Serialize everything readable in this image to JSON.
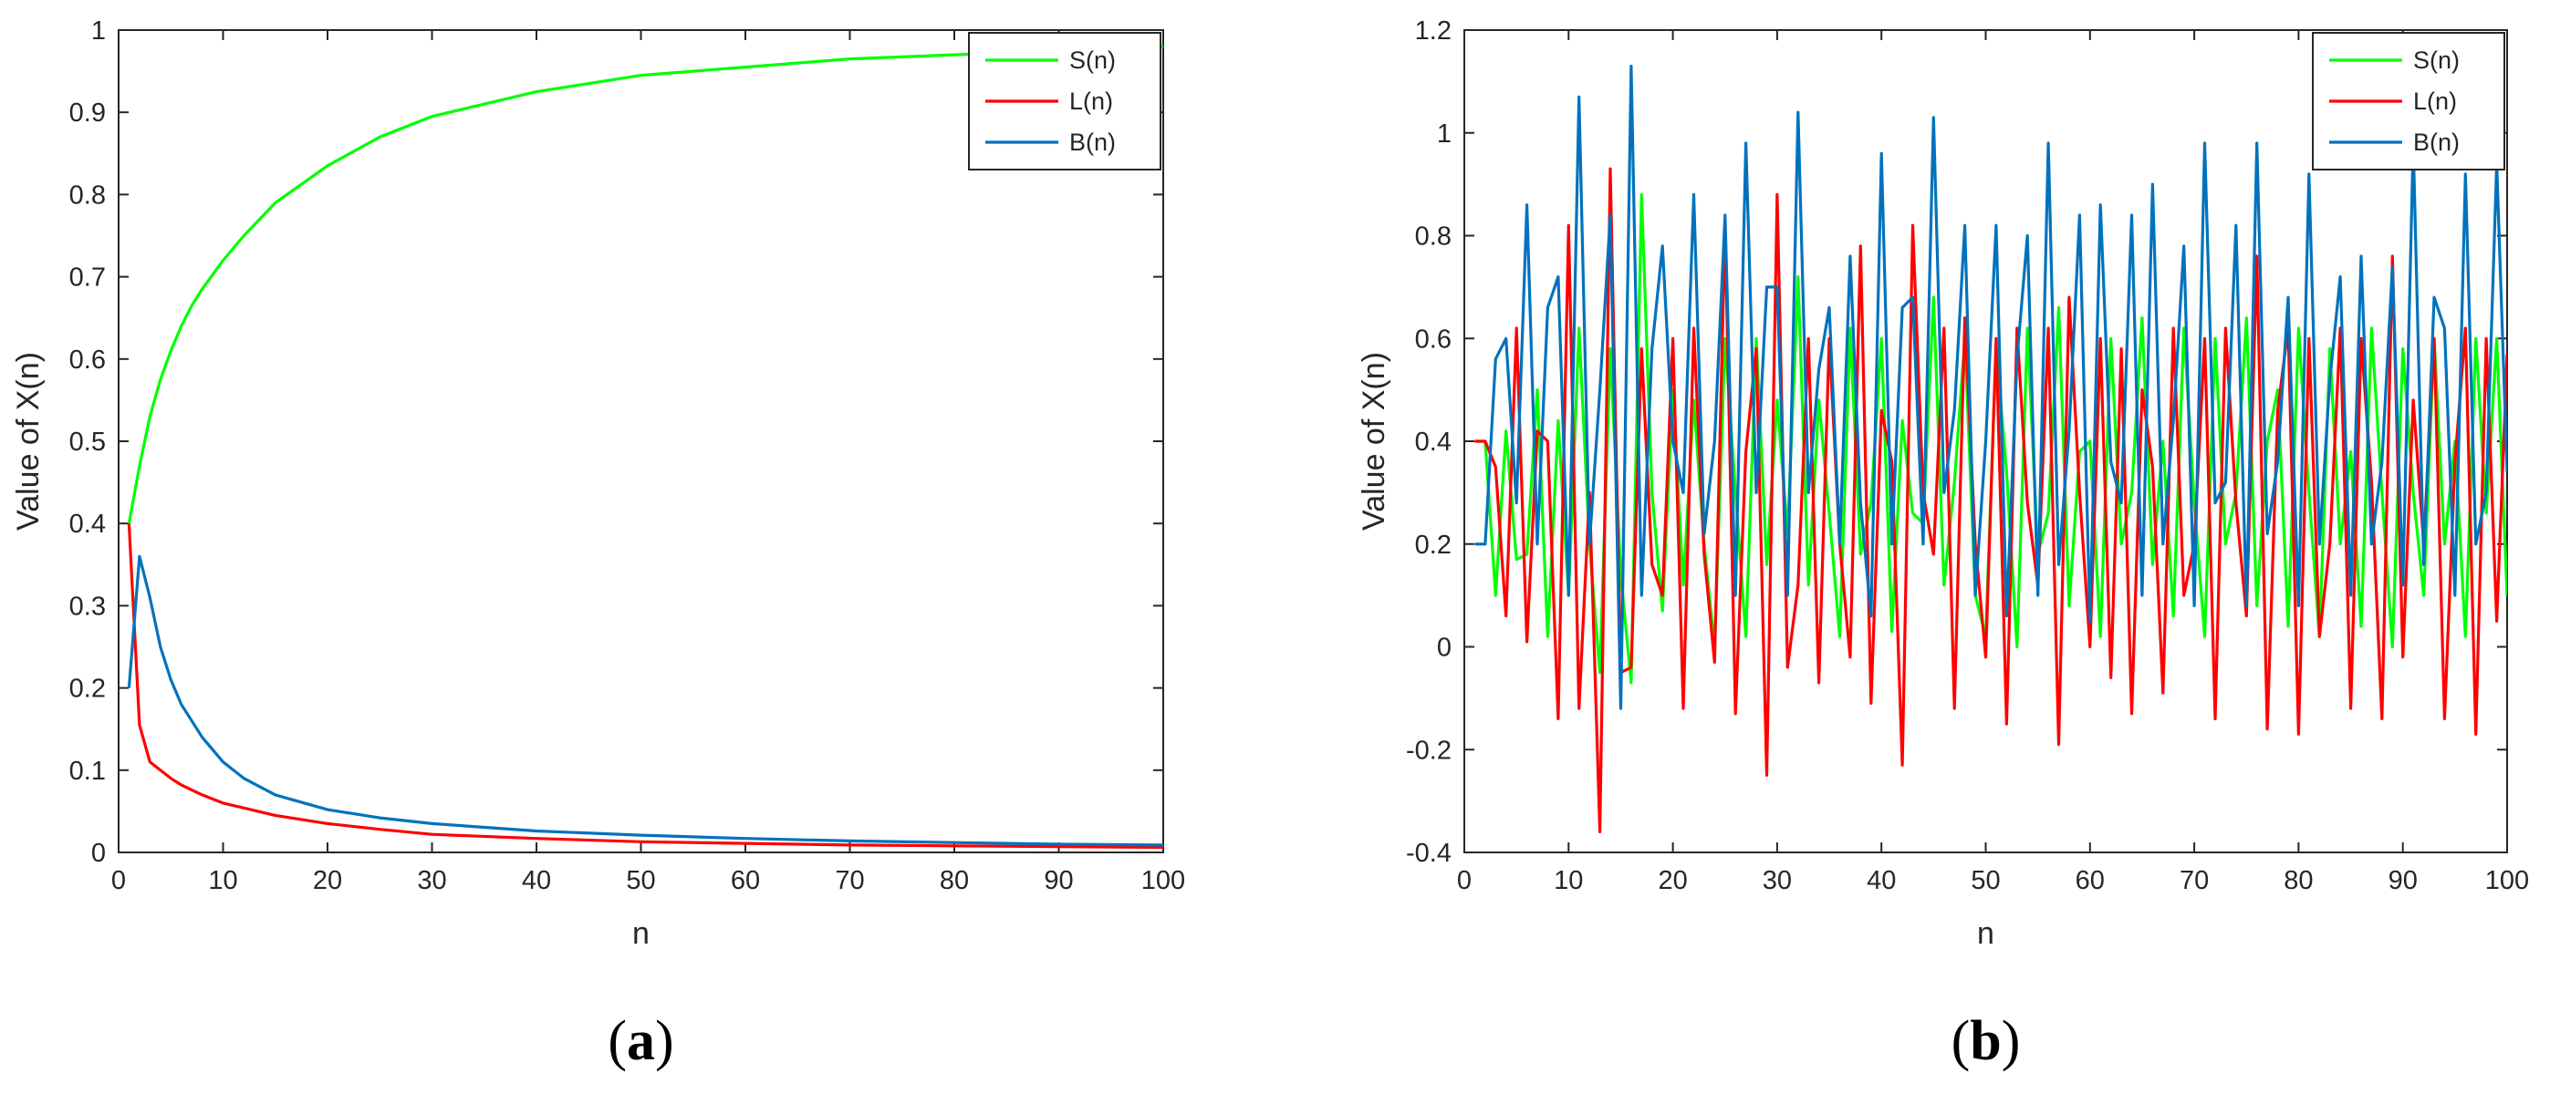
{
  "chart_data": [
    {
      "type": "line",
      "panel_label": "a",
      "xlabel": "n",
      "ylabel": "Value of X(n)",
      "xlim": [
        0,
        100
      ],
      "ylim": [
        0,
        1
      ],
      "xticks": [
        0,
        10,
        20,
        30,
        40,
        50,
        60,
        70,
        80,
        90,
        100
      ],
      "yticks": [
        0,
        0.1,
        0.2,
        0.3,
        0.4,
        0.5,
        0.6,
        0.7,
        0.8,
        0.9,
        1
      ],
      "ytick_labels": [
        "0",
        "0.1",
        "0.2",
        "0.3",
        "0.4",
        "0.5",
        "0.6",
        "0.7",
        "0.8",
        "0.9",
        "1"
      ],
      "grid": false,
      "legend_position": "top-right",
      "series": [
        {
          "name": "S(n)",
          "color": "#00ff00",
          "x": [
            1,
            2,
            3,
            4,
            5,
            6,
            7,
            8,
            10,
            12,
            15,
            20,
            25,
            30,
            40,
            50,
            60,
            70,
            80,
            90,
            100
          ],
          "y": [
            0.4,
            0.47,
            0.53,
            0.575,
            0.61,
            0.64,
            0.665,
            0.685,
            0.72,
            0.75,
            0.79,
            0.835,
            0.87,
            0.895,
            0.925,
            0.945,
            0.955,
            0.965,
            0.97,
            0.975,
            0.98
          ]
        },
        {
          "name": "L(n)",
          "color": "#ff0000",
          "x": [
            1,
            2,
            3,
            4,
            5,
            6,
            8,
            10,
            15,
            20,
            25,
            30,
            40,
            50,
            60,
            70,
            80,
            90,
            100
          ],
          "y": [
            0.4,
            0.155,
            0.11,
            0.1,
            0.09,
            0.082,
            0.07,
            0.06,
            0.045,
            0.035,
            0.028,
            0.022,
            0.017,
            0.013,
            0.011,
            0.009,
            0.008,
            0.007,
            0.006
          ]
        },
        {
          "name": "B(n)",
          "color": "#0072bd",
          "x": [
            1,
            2,
            3,
            4,
            5,
            6,
            7,
            8,
            10,
            12,
            15,
            20,
            25,
            30,
            40,
            50,
            60,
            70,
            80,
            90,
            100
          ],
          "y": [
            0.2,
            0.36,
            0.31,
            0.25,
            0.21,
            0.18,
            0.16,
            0.14,
            0.11,
            0.09,
            0.07,
            0.052,
            0.042,
            0.035,
            0.026,
            0.021,
            0.017,
            0.014,
            0.012,
            0.01,
            0.009
          ]
        }
      ]
    },
    {
      "type": "line",
      "panel_label": "b",
      "xlabel": "n",
      "ylabel": "Value of X(n)",
      "xlim": [
        0,
        100
      ],
      "ylim": [
        -0.4,
        1.2
      ],
      "xticks": [
        0,
        10,
        20,
        30,
        40,
        50,
        60,
        70,
        80,
        90,
        100
      ],
      "yticks": [
        -0.4,
        -0.2,
        0,
        0.2,
        0.4,
        0.6,
        0.8,
        1,
        1.2
      ],
      "ytick_labels": [
        "-0.4",
        "-0.2",
        "0",
        "0.2",
        "0.4",
        "0.6",
        "0.8",
        "1",
        "1.2"
      ],
      "grid": false,
      "legend_position": "top-right",
      "series": [
        {
          "name": "S(n)",
          "color": "#00ff00",
          "x": [
            1,
            2,
            3,
            4,
            5,
            6,
            7,
            8,
            9,
            10,
            11,
            12,
            13,
            14,
            15,
            16,
            17,
            18,
            19,
            20,
            21,
            22,
            23,
            24,
            25,
            26,
            27,
            28,
            29,
            30,
            31,
            32,
            33,
            34,
            35,
            36,
            37,
            38,
            39,
            40,
            41,
            42,
            43,
            44,
            45,
            46,
            47,
            48,
            49,
            50,
            51,
            52,
            53,
            54,
            55,
            56,
            57,
            58,
            59,
            60,
            61,
            62,
            63,
            64,
            65,
            66,
            67,
            68,
            69,
            70,
            71,
            72,
            73,
            74,
            75,
            76,
            77,
            78,
            79,
            80,
            81,
            82,
            83,
            84,
            85,
            86,
            87,
            88,
            89,
            90,
            91,
            92,
            93,
            94,
            95,
            96,
            97,
            98,
            99,
            100
          ],
          "y": [
            0.4,
            0.4,
            0.1,
            0.42,
            0.17,
            0.18,
            0.5,
            0.02,
            0.44,
            0.1,
            0.62,
            0.2,
            -0.05,
            0.58,
            0.14,
            -0.07,
            0.88,
            0.3,
            0.07,
            0.5,
            0.12,
            0.48,
            0.2,
            0.0,
            0.6,
            0.3,
            0.02,
            0.6,
            0.16,
            0.48,
            0.22,
            0.72,
            0.12,
            0.48,
            0.26,
            0.02,
            0.62,
            0.18,
            0.28,
            0.6,
            0.03,
            0.44,
            0.26,
            0.24,
            0.68,
            0.12,
            0.32,
            0.6,
            0.1,
            0.02,
            0.58,
            0.34,
            0.0,
            0.62,
            0.18,
            0.26,
            0.66,
            0.08,
            0.38,
            0.4,
            0.02,
            0.6,
            0.2,
            0.3,
            0.64,
            0.16,
            0.4,
            0.06,
            0.62,
            0.28,
            0.02,
            0.6,
            0.2,
            0.3,
            0.64,
            0.08,
            0.4,
            0.5,
            0.04,
            0.62,
            0.3,
            0.02,
            0.58,
            0.2,
            0.38,
            0.04,
            0.62,
            0.3,
            0.0,
            0.58,
            0.3,
            0.1,
            0.6,
            0.2,
            0.4,
            0.02,
            0.6,
            0.26,
            0.6,
            0.1
          ]
        },
        {
          "name": "L(n)",
          "color": "#ff0000",
          "x": [
            1,
            2,
            3,
            4,
            5,
            6,
            7,
            8,
            9,
            10,
            11,
            12,
            13,
            14,
            15,
            16,
            17,
            18,
            19,
            20,
            21,
            22,
            23,
            24,
            25,
            26,
            27,
            28,
            29,
            30,
            31,
            32,
            33,
            34,
            35,
            36,
            37,
            38,
            39,
            40,
            41,
            42,
            43,
            44,
            45,
            46,
            47,
            48,
            49,
            50,
            51,
            52,
            53,
            54,
            55,
            56,
            57,
            58,
            59,
            60,
            61,
            62,
            63,
            64,
            65,
            66,
            67,
            68,
            69,
            70,
            71,
            72,
            73,
            74,
            75,
            76,
            77,
            78,
            79,
            80,
            81,
            82,
            83,
            84,
            85,
            86,
            87,
            88,
            89,
            90,
            91,
            92,
            93,
            94,
            95,
            96,
            97,
            98,
            99,
            100
          ],
          "y": [
            0.4,
            0.4,
            0.35,
            0.06,
            0.62,
            0.01,
            0.42,
            0.4,
            -0.14,
            0.82,
            -0.12,
            0.3,
            -0.36,
            0.93,
            -0.05,
            -0.04,
            0.58,
            0.16,
            0.1,
            0.6,
            -0.12,
            0.62,
            0.18,
            -0.03,
            0.82,
            -0.13,
            0.38,
            0.58,
            -0.25,
            0.88,
            -0.04,
            0.12,
            0.6,
            -0.07,
            0.6,
            0.2,
            -0.02,
            0.78,
            -0.11,
            0.46,
            0.36,
            -0.23,
            0.82,
            0.3,
            0.18,
            0.62,
            -0.12,
            0.64,
            0.2,
            -0.02,
            0.6,
            -0.15,
            0.62,
            0.28,
            0.12,
            0.62,
            -0.19,
            0.68,
            0.3,
            0.0,
            0.6,
            -0.06,
            0.58,
            -0.13,
            0.5,
            0.35,
            -0.09,
            0.62,
            0.1,
            0.2,
            0.6,
            -0.14,
            0.62,
            0.28,
            0.06,
            0.76,
            -0.16,
            0.46,
            0.62,
            -0.17,
            0.6,
            0.02,
            0.2,
            0.62,
            -0.12,
            0.6,
            0.32,
            -0.14,
            0.76,
            -0.02,
            0.48,
            0.2,
            0.6,
            -0.14,
            0.36,
            0.62,
            -0.17,
            0.6,
            0.05,
            0.57
          ]
        },
        {
          "name": "B(n)",
          "color": "#0072bd",
          "x": [
            1,
            2,
            3,
            4,
            5,
            6,
            7,
            8,
            9,
            10,
            11,
            12,
            13,
            14,
            15,
            16,
            17,
            18,
            19,
            20,
            21,
            22,
            23,
            24,
            25,
            26,
            27,
            28,
            29,
            30,
            31,
            32,
            33,
            34,
            35,
            36,
            37,
            38,
            39,
            40,
            41,
            42,
            43,
            44,
            45,
            46,
            47,
            48,
            49,
            50,
            51,
            52,
            53,
            54,
            55,
            56,
            57,
            58,
            59,
            60,
            61,
            62,
            63,
            64,
            65,
            66,
            67,
            68,
            69,
            70,
            71,
            72,
            73,
            74,
            75,
            76,
            77,
            78,
            79,
            80,
            81,
            82,
            83,
            84,
            85,
            86,
            87,
            88,
            89,
            90,
            91,
            92,
            93,
            94,
            95,
            96,
            97,
            98,
            99,
            100
          ],
          "y": [
            0.2,
            0.2,
            0.56,
            0.6,
            0.28,
            0.86,
            0.2,
            0.66,
            0.72,
            0.1,
            1.07,
            0.2,
            0.5,
            0.84,
            -0.12,
            1.13,
            0.1,
            0.58,
            0.78,
            0.4,
            0.3,
            0.88,
            0.22,
            0.4,
            0.84,
            0.1,
            0.98,
            0.3,
            0.7,
            0.7,
            0.1,
            1.04,
            0.3,
            0.54,
            0.66,
            0.2,
            0.76,
            0.28,
            0.06,
            0.96,
            0.2,
            0.66,
            0.68,
            0.2,
            1.03,
            0.3,
            0.46,
            0.82,
            0.1,
            0.4,
            0.82,
            0.06,
            0.56,
            0.8,
            0.1,
            0.98,
            0.16,
            0.42,
            0.84,
            0.05,
            0.86,
            0.36,
            0.28,
            0.84,
            0.1,
            0.9,
            0.2,
            0.44,
            0.78,
            0.08,
            0.98,
            0.28,
            0.32,
            0.82,
            0.08,
            0.98,
            0.22,
            0.36,
            0.68,
            0.08,
            0.92,
            0.2,
            0.52,
            0.72,
            0.1,
            0.76,
            0.2,
            0.36,
            0.74,
            0.12,
            0.98,
            0.16,
            0.68,
            0.62,
            0.1,
            0.92,
            0.2,
            0.3,
            0.94,
            0.34
          ]
        }
      ]
    }
  ]
}
